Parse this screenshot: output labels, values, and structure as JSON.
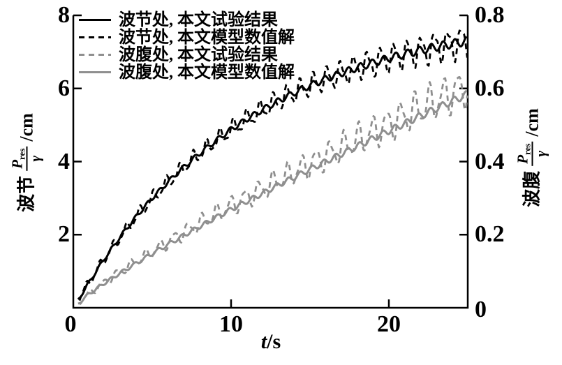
{
  "figure": {
    "background": "#ffffff",
    "axis_color": "#000000",
    "black_series_color": "#000000",
    "gray_series_color": "#8f8f8f"
  },
  "chart_data": {
    "type": "line",
    "title": "",
    "grid": false,
    "legend_position": "upper-left-inside",
    "x_axis": {
      "label_var": "t",
      "label_unit": "/s",
      "min": 0,
      "max": 25,
      "ticks": [
        {
          "v": 0,
          "t": "0"
        },
        {
          "v": 10,
          "t": "10"
        },
        {
          "v": 20,
          "t": "20"
        }
      ]
    },
    "left_axis": {
      "prefix": "波节",
      "frac_num": "P",
      "frac_sub": "res",
      "frac_den": "γ",
      "unit": "/cm",
      "min": 0,
      "max": 8,
      "ticks": [
        {
          "v": 8,
          "t": "8"
        },
        {
          "v": 6,
          "t": "6"
        },
        {
          "v": 4,
          "t": "4"
        },
        {
          "v": 2,
          "t": "2"
        }
      ]
    },
    "right_axis": {
      "prefix": "波腹",
      "frac_num": "P",
      "frac_sub": "res",
      "frac_den": "γ",
      "unit": "/cm",
      "min": 0,
      "max": 0.8,
      "ticks": [
        {
          "v": 0.8,
          "t": "0.8"
        },
        {
          "v": 0.6,
          "t": "0.6"
        },
        {
          "v": 0.4,
          "t": "0.4"
        },
        {
          "v": 0.2,
          "t": "0.2"
        },
        {
          "v": 0,
          "t": "0"
        }
      ]
    },
    "bases": {
      "node": [
        [
          0,
          0
        ],
        [
          1,
          0.7
        ],
        [
          2,
          1.36
        ],
        [
          3,
          1.96
        ],
        [
          4,
          2.5
        ],
        [
          5,
          3.0
        ],
        [
          6,
          3.44
        ],
        [
          7,
          3.85
        ],
        [
          8,
          4.22
        ],
        [
          9,
          4.56
        ],
        [
          10,
          4.88
        ],
        [
          11,
          5.16
        ],
        [
          12,
          5.42
        ],
        [
          13,
          5.66
        ],
        [
          14,
          5.88
        ],
        [
          15,
          6.08
        ],
        [
          16,
          6.26
        ],
        [
          17,
          6.42
        ],
        [
          18,
          6.57
        ],
        [
          19,
          6.7
        ],
        [
          20,
          6.83
        ],
        [
          21,
          6.94
        ],
        [
          22,
          7.04
        ],
        [
          23,
          7.14
        ],
        [
          24,
          7.22
        ],
        [
          25,
          7.3
        ]
      ],
      "antinode": [
        [
          0,
          0
        ],
        [
          1,
          0.038
        ],
        [
          2,
          0.068
        ],
        [
          3,
          0.096
        ],
        [
          4,
          0.122
        ],
        [
          5,
          0.148
        ],
        [
          6,
          0.173
        ],
        [
          7,
          0.198
        ],
        [
          8,
          0.222
        ],
        [
          9,
          0.246
        ],
        [
          10,
          0.269
        ],
        [
          11,
          0.291
        ],
        [
          12,
          0.313
        ],
        [
          13,
          0.336
        ],
        [
          14,
          0.357
        ],
        [
          15,
          0.379
        ],
        [
          16,
          0.4
        ],
        [
          17,
          0.421
        ],
        [
          18,
          0.442
        ],
        [
          19,
          0.463
        ],
        [
          20,
          0.484
        ],
        [
          21,
          0.504
        ],
        [
          22,
          0.525
        ],
        [
          23,
          0.545
        ],
        [
          24,
          0.565
        ],
        [
          25,
          0.585
        ]
      ]
    },
    "series": [
      {
        "key": "node-experiment",
        "name": "波节处, 本文试验结果",
        "axis": "left",
        "base": "node",
        "scale": 1.0,
        "start": 0.3,
        "color": "#000000",
        "width": 3,
        "dash": null,
        "osc": [
          {
            "a0": 0.04,
            "a1": 0.12,
            "p": 0.75,
            "ph": 0.0
          }
        ]
      },
      {
        "key": "node-model",
        "name": "波节处, 本文模型数值解",
        "axis": "left",
        "base": "node",
        "scale": 1.0,
        "start": 0.4,
        "color": "#000000",
        "width": 2.8,
        "dash": [
          8,
          6
        ],
        "osc": [
          {
            "a0": 0.1,
            "a1": 0.4,
            "p": 0.85,
            "ph": 2.0
          },
          {
            "a0": 0.03,
            "a1": 0.14,
            "p": 0.42,
            "ph": 0.9
          }
        ]
      },
      {
        "key": "antinode-experiment",
        "name": "波腹处, 本文试验结果",
        "axis": "right",
        "base": "antinode",
        "scale": 1.04,
        "start": 0.4,
        "color": "#8f8f8f",
        "width": 2.8,
        "dash": [
          8,
          6
        ],
        "osc": [
          {
            "a0": 0.006,
            "a1": 0.05,
            "p": 0.9,
            "ph": 1.1
          },
          {
            "a0": 0.002,
            "a1": 0.016,
            "p": 0.5,
            "ph": 0.2
          }
        ]
      },
      {
        "key": "antinode-model",
        "name": "波腹处, 本文模型数值解",
        "axis": "right",
        "base": "antinode",
        "scale": 1.0,
        "start": 0.3,
        "color": "#8f8f8f",
        "width": 3,
        "dash": null,
        "osc": [
          {
            "a0": 0.004,
            "a1": 0.01,
            "p": 0.75,
            "ph": 0.5
          }
        ]
      }
    ]
  }
}
